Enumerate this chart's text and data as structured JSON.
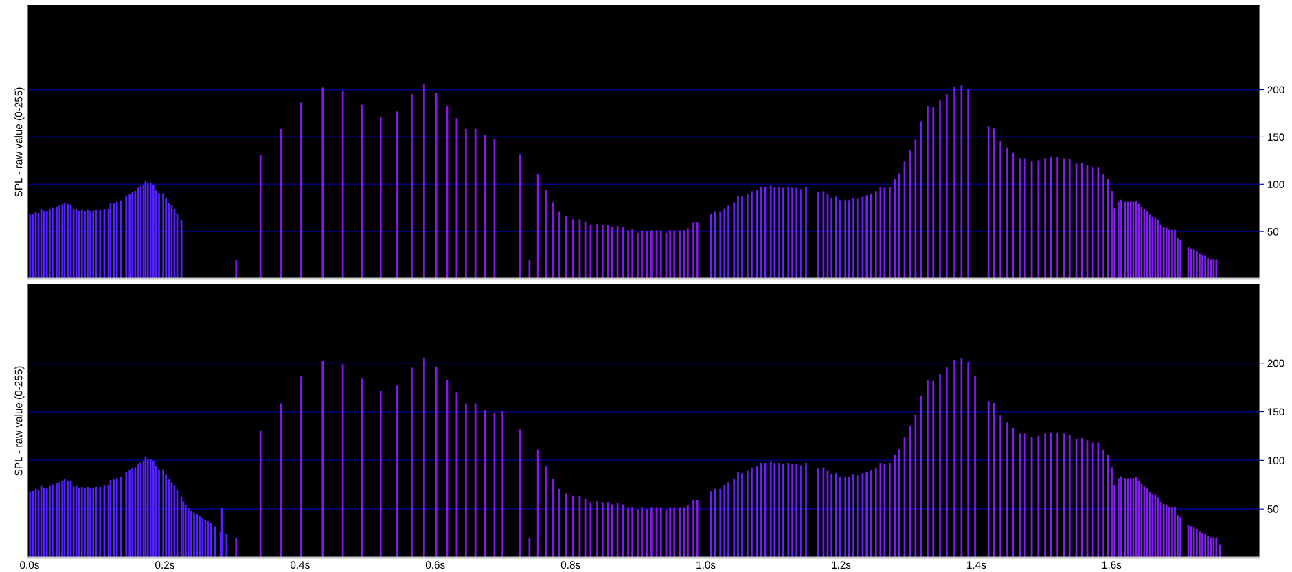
{
  "chart_data": [
    {
      "type": "bar",
      "ylabel": "SPL - raw value (0-255)",
      "xlim": [
        -0.002,
        1.818
      ],
      "ylim": [
        0,
        289
      ],
      "yticks": [
        50,
        100,
        150,
        200
      ],
      "grid": "y",
      "tick_labels": "y",
      "series": [
        {
          "color": "#5522ff",
          "x": [
            0.0009,
            0.005,
            0.0092,
            0.0133,
            0.0174,
            0.0216,
            0.0257,
            0.0299,
            0.034,
            0.0402,
            0.0444,
            0.0485,
            0.0518,
            0.0568,
            0.061,
            0.0651,
            0.0692,
            0.0734,
            0.0775,
            0.0817,
            0.0858,
            0.09,
            0.0941,
            0.0983,
            0.1045,
            0.1107,
            0.1169,
            0.1198,
            0.1252,
            0.1293,
            0.1355,
            0.143,
            0.148,
            0.1521,
            0.1563,
            0.1604,
            0.1645,
            0.1687,
            0.1716,
            0.1749,
            0.1791,
            0.1832,
            0.1873,
            0.1915,
            0.1977,
            0.2018,
            0.206,
            0.2102,
            0.2143,
            0.2184,
            0.2246
          ],
          "values": [
            68.1,
            68.7,
            70.5,
            69.6,
            73.7,
            71.6,
            71.1,
            73.7,
            75.1,
            76.3,
            77.5,
            78.9,
            80.7,
            79.2,
            78.4,
            73.1,
            73.7,
            71.6,
            72.8,
            71.6,
            72.8,
            71.1,
            72.2,
            72.8,
            72.8,
            74,
            74,
            79.8,
            80.4,
            81.6,
            83,
            88,
            89.8,
            92.1,
            93,
            96.2,
            98,
            98.8,
            103.8,
            101.5,
            101.5,
            99.1,
            93.9,
            90.6,
            90.6,
            85.1,
            80.4,
            77.5,
            74,
            69.3,
            62.3
          ]
        },
        {
          "color": "#8c14f0",
          "x": [
            0.3055,
            0.3415,
            0.3713,
            0.4016,
            0.4335,
            0.4633,
            0.4915,
            0.5193,
            0.5433,
            0.5652,
            0.5834,
            0.6015,
            0.6175,
            0.6316,
            0.6453,
            0.6593,
            0.6734,
            0.6875,
            0.7256
          ],
          "values": [
            19.9,
            130.7,
            158.5,
            186.3,
            202.3,
            198.8,
            183.9,
            171,
            176.9,
            195.3,
            205.6,
            196.5,
            182.8,
            169.9,
            158.5,
            158.5,
            151.8,
            148.2,
            131.9
          ]
        },
        {
          "color": "#8418ec",
          "x": [
            0.7393,
            0.7517,
            0.7637,
            0.7737,
            0.7836,
            0.7936,
            0.8036,
            0.8135,
            0.8218,
            0.8297,
            0.8396,
            0.8474,
            0.8554,
            0.8615,
            0.8695,
            0.8773,
            0.8852,
            0.8914,
            0.8993,
            0.9055,
            0.9133,
            0.9196,
            0.9274,
            0.9336,
            0.9415,
            0.9473,
            0.9535,
            0.9614,
            0.9676,
            0.9734,
            0.9817,
            0.9875
          ],
          "values": [
            19.9,
            111.1,
            93.9,
            81,
            70.8,
            66.1,
            62.9,
            62.9,
            60.5,
            57,
            58.2,
            57,
            57,
            54.7,
            55.8,
            54.7,
            51.2,
            52.3,
            48.8,
            51.2,
            50,
            51.2,
            51.2,
            51.2,
            48.8,
            51.2,
            51.2,
            51.2,
            51.2,
            53.5,
            59.4,
            59.4
          ]
        },
        {
          "color": "#6622f8",
          "x": [
            1.0074,
            1.0136,
            1.0215,
            1.0277,
            1.0335,
            1.0418,
            1.0476,
            1.0538,
            1.0617,
            1.0679,
            1.0757,
            1.082,
            1.0878,
            1.0961,
            1.1019,
            1.1087,
            1.1139,
            1.1221,
            1.128,
            1.1342,
            1.14,
            1.1482,
            1.1661,
            1.174,
            1.1802,
            1.186,
            1.1922,
            1.198,
            1.2063,
            1.2121,
            1.2183,
            1.2241,
            1.232
          ],
          "values": [
            68.4,
            70.8,
            70.8,
            74.3,
            77.5,
            81,
            88,
            86.8,
            89.2,
            92.7,
            93.9,
            97.4,
            97.4,
            98.5,
            97.4,
            97.4,
            96.2,
            97.4,
            96.2,
            96.2,
            95,
            97.4,
            91.5,
            92.7,
            89.2,
            85.7,
            86.8,
            83.3,
            83.3,
            83.3,
            85.7,
            84.5,
            86.8
          ]
        },
        {
          "color": "#7a1cf4",
          "x": [
            1.2379,
            1.2441,
            1.2516,
            1.2582,
            1.2644,
            1.2719,
            1.2798,
            1.2856,
            1.2939,
            1.3022,
            1.3101,
            1.318,
            1.3279,
            1.3363,
            1.3462,
            1.3562,
            1.3677,
            1.3781,
            1.3881
          ],
          "values": [
            88.3,
            89.5,
            92.7,
            97.4,
            96.2,
            97.4,
            105.6,
            111.4,
            124,
            135.7,
            147.1,
            166.7,
            182.8,
            181.6,
            188.7,
            195.4,
            203.3,
            204.5,
            201.2
          ]
        },
        {
          "color": "#8020ee",
          "x": [
            1.418,
            1.4259,
            1.4358,
            1.4458,
            1.4541,
            1.4641,
            1.4719,
            1.4819,
            1.4919,
            1.5018,
            1.5102,
            1.5201,
            1.53,
            1.5379,
            1.5479,
            1.5562,
            1.5641,
            1.5724,
            1.5802,
            1.5881,
            1.5943,
            1.6002,
            1.6043,
            1.6102,
            1.6143,
            1.6201,
            1.6243,
            1.6284,
            1.6321,
            1.6363,
            1.64,
            1.6442,
            1.6483,
            1.6525,
            1.6567,
            1.6604,
            1.6645,
            1.6687,
            1.6728,
            1.677,
            1.6811,
            1.6853,
            1.6895,
            1.6936,
            1.6977,
            1.7018,
            1.7135,
            1.7177,
            1.7217,
            1.7259,
            1.7301,
            1.7342,
            1.7384,
            1.7425,
            1.7467,
            1.7509,
            1.7549
          ],
          "values": [
            160.9,
            158.8,
            146,
            138.9,
            133.1,
            127.5,
            127.5,
            124,
            125.2,
            127.5,
            128.7,
            128.7,
            127.5,
            126.4,
            121.7,
            122.8,
            120.5,
            118.2,
            118.2,
            110.3,
            105.6,
            93,
            74.6,
            81.6,
            83.7,
            81.6,
            81.6,
            81.6,
            81.6,
            82.8,
            79.3,
            75.8,
            73.4,
            71.1,
            67.9,
            65.5,
            64.4,
            62,
            57.3,
            55,
            54.1,
            51.8,
            51.8,
            51.8,
            43.6,
            41.5,
            33.3,
            32.2,
            31,
            29,
            26.6,
            25.4,
            24.3,
            21.9,
            20.8,
            20.8,
            20.8
          ]
        }
      ]
    },
    {
      "type": "bar",
      "ylabel": "SPL - raw value (0-255)",
      "xlim": [
        -0.002,
        1.818
      ],
      "ylim": [
        0,
        281
      ],
      "yticks": [
        50,
        100,
        150,
        200
      ],
      "grid": "y",
      "xticks": [
        {
          "value": 0,
          "label": "0.0s"
        },
        {
          "value": 0.2,
          "label": "0.2s"
        },
        {
          "value": 0.4,
          "label": "0.4s"
        },
        {
          "value": 0.6,
          "label": "0.6s"
        },
        {
          "value": 0.8,
          "label": "0.8s"
        },
        {
          "value": 1.0,
          "label": "1.0s"
        },
        {
          "value": 1.2,
          "label": "1.2s"
        },
        {
          "value": 1.4,
          "label": "1.4s"
        },
        {
          "value": 1.6,
          "label": "1.6s"
        }
      ],
      "series": [
        {
          "color": "#5522ff",
          "x": [
            0.0009,
            0.005,
            0.0092,
            0.0133,
            0.0174,
            0.0216,
            0.0257,
            0.0299,
            0.034,
            0.0402,
            0.0444,
            0.0485,
            0.0518,
            0.0568,
            0.061,
            0.0651,
            0.0692,
            0.0734,
            0.0775,
            0.0817,
            0.0858,
            0.09,
            0.0941,
            0.0983,
            0.1045,
            0.1107,
            0.1169,
            0.1198,
            0.1252,
            0.1293,
            0.1355,
            0.143,
            0.148,
            0.1521,
            0.1563,
            0.1604,
            0.1645,
            0.1687,
            0.1716,
            0.1749,
            0.1791,
            0.1832,
            0.1873,
            0.1915,
            0.1977,
            0.2018,
            0.206,
            0.2102,
            0.2143,
            0.2184,
            0.2246,
            0.2275,
            0.2309,
            0.235,
            0.2392,
            0.2433,
            0.2474,
            0.2516,
            0.2557,
            0.2599,
            0.264,
            0.2681,
            0.2743,
            0.2825,
            0.2845,
            0.2914
          ],
          "values": [
            68.1,
            68.7,
            70.5,
            69.6,
            73.7,
            71.6,
            71.1,
            73.7,
            75.1,
            76.3,
            77.5,
            78.9,
            80.7,
            79.2,
            78.4,
            73.1,
            73.7,
            71.6,
            72.8,
            71.6,
            72.8,
            71.1,
            72.2,
            72.8,
            72.8,
            74,
            74,
            79.8,
            80.4,
            81.6,
            83,
            88,
            89.8,
            92.1,
            93,
            96.2,
            98,
            98.8,
            103.8,
            101.5,
            101.5,
            99.1,
            93.9,
            90.6,
            90.6,
            85.1,
            80.4,
            77.5,
            74,
            69.3,
            62.3,
            57.6,
            54,
            50.6,
            48,
            46,
            44.7,
            42.4,
            40.6,
            38.9,
            37.4,
            35.7,
            32.2,
            26.3,
            50.6,
            24
          ]
        },
        {
          "color": "#8c14f0",
          "x": [
            0.3055,
            0.3415,
            0.3713,
            0.4016,
            0.4335,
            0.4633,
            0.4915,
            0.5193,
            0.5433,
            0.5652,
            0.5834,
            0.6015,
            0.6175,
            0.6316,
            0.6453,
            0.6593,
            0.6734,
            0.6875,
            0.6995,
            0.7256
          ],
          "values": [
            19.9,
            130.7,
            158.5,
            186.3,
            202.3,
            198.8,
            183.9,
            171,
            176.9,
            195.3,
            205.6,
            196.5,
            182.8,
            169.9,
            158.5,
            158.5,
            151.8,
            148.2,
            150.6,
            131.9
          ]
        },
        {
          "color": "#8418ec",
          "x": [
            0.7393,
            0.7517,
            0.7637,
            0.7737,
            0.7836,
            0.7936,
            0.8036,
            0.8135,
            0.8218,
            0.8297,
            0.8396,
            0.8474,
            0.8554,
            0.8615,
            0.8695,
            0.8773,
            0.8852,
            0.8914,
            0.8993,
            0.9055,
            0.9133,
            0.9196,
            0.9274,
            0.9336,
            0.9415,
            0.9473,
            0.9535,
            0.9614,
            0.9676,
            0.9734,
            0.9817,
            0.9875
          ],
          "values": [
            19.9,
            111.1,
            93.9,
            81,
            70.8,
            66.1,
            62.9,
            62.9,
            60.5,
            57,
            58.2,
            57,
            57,
            54.7,
            55.8,
            54.7,
            51.2,
            52.3,
            48.8,
            51.2,
            50,
            51.2,
            51.2,
            51.2,
            48.8,
            51.2,
            51.2,
            51.2,
            51.2,
            53.5,
            59.4,
            59.4
          ]
        },
        {
          "color": "#6622f8",
          "x": [
            1.0074,
            1.0136,
            1.0215,
            1.0277,
            1.0335,
            1.0418,
            1.0476,
            1.0538,
            1.0617,
            1.0679,
            1.0757,
            1.082,
            1.0878,
            1.0961,
            1.1019,
            1.1087,
            1.1139,
            1.1221,
            1.128,
            1.1342,
            1.14,
            1.1482,
            1.1661,
            1.174,
            1.1802,
            1.186,
            1.1922,
            1.198,
            1.2063,
            1.2121,
            1.2183,
            1.2241,
            1.232
          ],
          "values": [
            68.4,
            70.8,
            70.8,
            74.3,
            77.5,
            81,
            88,
            86.8,
            89.2,
            92.7,
            93.9,
            97.4,
            97.4,
            98.5,
            97.4,
            97.4,
            96.2,
            97.4,
            96.2,
            96.2,
            95,
            97.4,
            91.5,
            92.7,
            89.2,
            85.7,
            86.8,
            83.3,
            83.3,
            83.3,
            85.7,
            84.5,
            86.8
          ]
        },
        {
          "color": "#7a1cf4",
          "x": [
            1.2379,
            1.2441,
            1.2516,
            1.2582,
            1.2644,
            1.2719,
            1.2798,
            1.2856,
            1.2939,
            1.3022,
            1.3101,
            1.318,
            1.3279,
            1.3363,
            1.3462,
            1.3562,
            1.3677,
            1.3781,
            1.3881,
            1.3981
          ],
          "values": [
            88.3,
            89.5,
            92.7,
            97.4,
            96.2,
            97.4,
            105.6,
            111.4,
            124,
            135.7,
            147.1,
            166.7,
            182.8,
            181.6,
            188.7,
            195.4,
            203.3,
            204.5,
            201.2,
            186.6
          ]
        },
        {
          "color": "#8020ee",
          "x": [
            1.418,
            1.4259,
            1.4358,
            1.4458,
            1.4541,
            1.4641,
            1.4719,
            1.4819,
            1.4919,
            1.5018,
            1.5102,
            1.5201,
            1.53,
            1.5379,
            1.5479,
            1.5562,
            1.5641,
            1.5724,
            1.5802,
            1.5881,
            1.5943,
            1.6002,
            1.6043,
            1.6102,
            1.6143,
            1.6201,
            1.6243,
            1.6284,
            1.6321,
            1.6363,
            1.64,
            1.6442,
            1.6483,
            1.6525,
            1.6567,
            1.6604,
            1.6645,
            1.6687,
            1.6728,
            1.677,
            1.6811,
            1.6853,
            1.6895,
            1.6936,
            1.6977,
            1.7018,
            1.7135,
            1.7177,
            1.7217,
            1.7259,
            1.7301,
            1.7342,
            1.7384,
            1.7425,
            1.7467,
            1.7509,
            1.7549,
            1.76
          ],
          "values": [
            160.9,
            158.8,
            146,
            138.9,
            133.1,
            127.5,
            127.5,
            124,
            125.2,
            127.5,
            128.7,
            128.7,
            127.5,
            126.4,
            121.7,
            122.8,
            120.5,
            118.2,
            118.2,
            110.3,
            105.6,
            93,
            74.6,
            81.6,
            83.7,
            81.6,
            81.6,
            81.6,
            81.6,
            82.8,
            79.3,
            75.8,
            73.4,
            71.1,
            67.9,
            65.5,
            64.4,
            62,
            57.3,
            55,
            54.1,
            51.8,
            51.8,
            51.8,
            43.6,
            41.5,
            33.3,
            32.2,
            31,
            29,
            26.6,
            25.4,
            24.3,
            21.9,
            20.8,
            20.8,
            20.8,
            13.7
          ]
        }
      ]
    }
  ]
}
